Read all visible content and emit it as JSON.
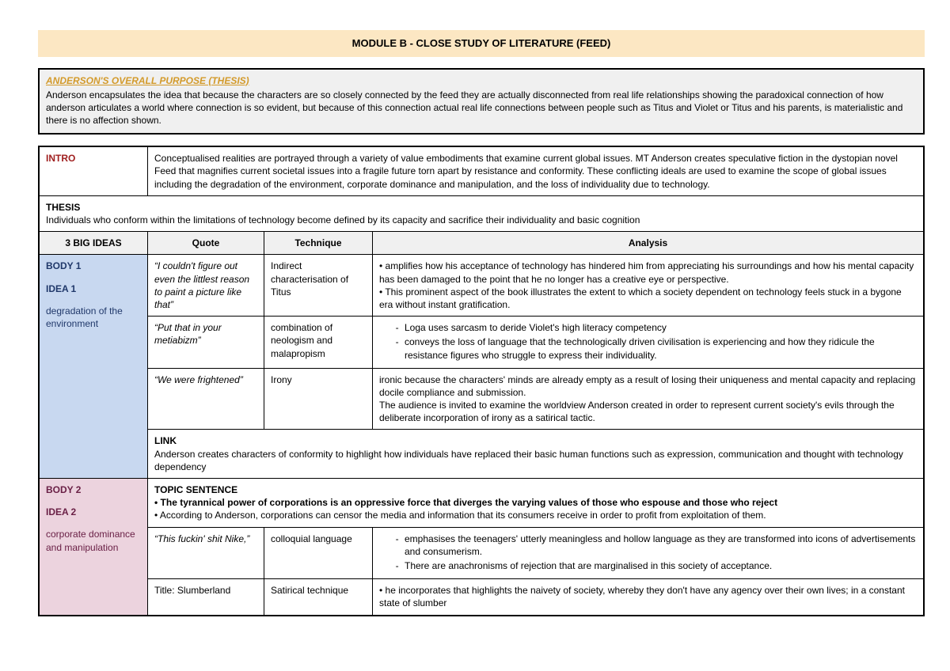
{
  "title": "MODULE B - CLOSE STUDY OF LITERATURE (FEED)",
  "purpose": {
    "heading": "ANDERSON'S OVERALL PURPOSE (THESIS)",
    "text": "Anderson encapsulates the idea that because the characters are so closely connected by the feed they are actually disconnected from real life relationships showing the paradoxical connection of how anderson articulates a world where connection is so evident, but because of this connection actual real life connections between people such as Titus and Violet or Titus and his parents, is materialistic and there is no affection shown."
  },
  "intro": {
    "label": "INTRO",
    "text": "Conceptualised realities are portrayed through a variety of value embodiments that examine current global issues. MT Anderson creates speculative fiction in the dystopian novel Feed that magnifies current societal issues into a fragile future torn apart by resistance and conformity. These conflicting ideals are used to examine the scope of global issues including the degradation of the environment, corporate dominance and manipulation, and the loss of individuality due to technology."
  },
  "thesis": {
    "label": "THESIS",
    "text": "Individuals who conform within the limitations of technology become defined by its capacity and sacrifice their individuality and basic cognition"
  },
  "headers": {
    "ideas": "3 BIG IDEAS",
    "quote": "Quote",
    "technique": "Technique",
    "analysis": "Analysis"
  },
  "body1": {
    "label": "BODY 1",
    "idea_label": "IDEA 1",
    "idea_sub": "degradation of the environment",
    "rows": [
      {
        "quote": "“I couldn't figure out even the littlest reason to paint a picture like that”",
        "technique": "Indirect characterisation of Titus",
        "analysis": "• amplifies how his acceptance of technology has hindered him from appreciating his surroundings and how his mental capacity has been damaged to the point that he no longer has a creative eye or perspective.\n• This prominent aspect of the book illustrates the extent to which a society dependent on technology feels stuck in a bygone era without instant gratification."
      },
      {
        "quote": "“Put that in your metiabizm”",
        "technique": "combination of neologism and malapropism",
        "dash_points": [
          "Loga uses sarcasm to deride Violet's high literacy competency",
          "conveys the loss of language that the technologically driven civilisation is experiencing and how they ridicule the resistance figures who struggle to express their individuality."
        ]
      },
      {
        "quote": "“We were frightened”",
        "technique": "Irony",
        "analysis": "ironic because the characters' minds are already empty as a result of losing their uniqueness and mental capacity and replacing docile compliance and submission.\nThe audience is invited to examine the worldview Anderson created in order to represent current society's evils through the deliberate incorporation of irony as a satirical tactic."
      }
    ],
    "link": {
      "label": "LINK",
      "text": "Anderson creates characters of conformity to highlight how individuals have replaced their basic human functions such as expression, communication and thought with technology dependency"
    }
  },
  "body2": {
    "label": "BODY 2",
    "idea_label": "IDEA 2",
    "idea_sub": "corporate dominance and manipulation",
    "topic": {
      "label": "TOPIC SENTENCE",
      "bold_line": "• The tyrannical power of corporations is an oppressive force that diverges the varying values of those who espouse and those who reject",
      "second_line": "• According to Anderson, corporations can censor the media and information that its consumers receive in order to profit from exploitation of them."
    },
    "rows": [
      {
        "quote": "“This fuckin' shit Nike,”",
        "technique": "colloquial language",
        "dash_points": [
          "emphasises the teenagers' utterly meaningless and hollow language as they are transformed into icons of advertisements and consumerism.",
          "There are anachronisms of rejection that are marginalised in this society of acceptance."
        ]
      },
      {
        "quote": "Title: Slumberland",
        "technique": "Satirical technique",
        "analysis": "• he incorporates that highlights the naivety of society, whereby they don't have any agency over their own lives; in a constant state of slumber"
      }
    ]
  }
}
